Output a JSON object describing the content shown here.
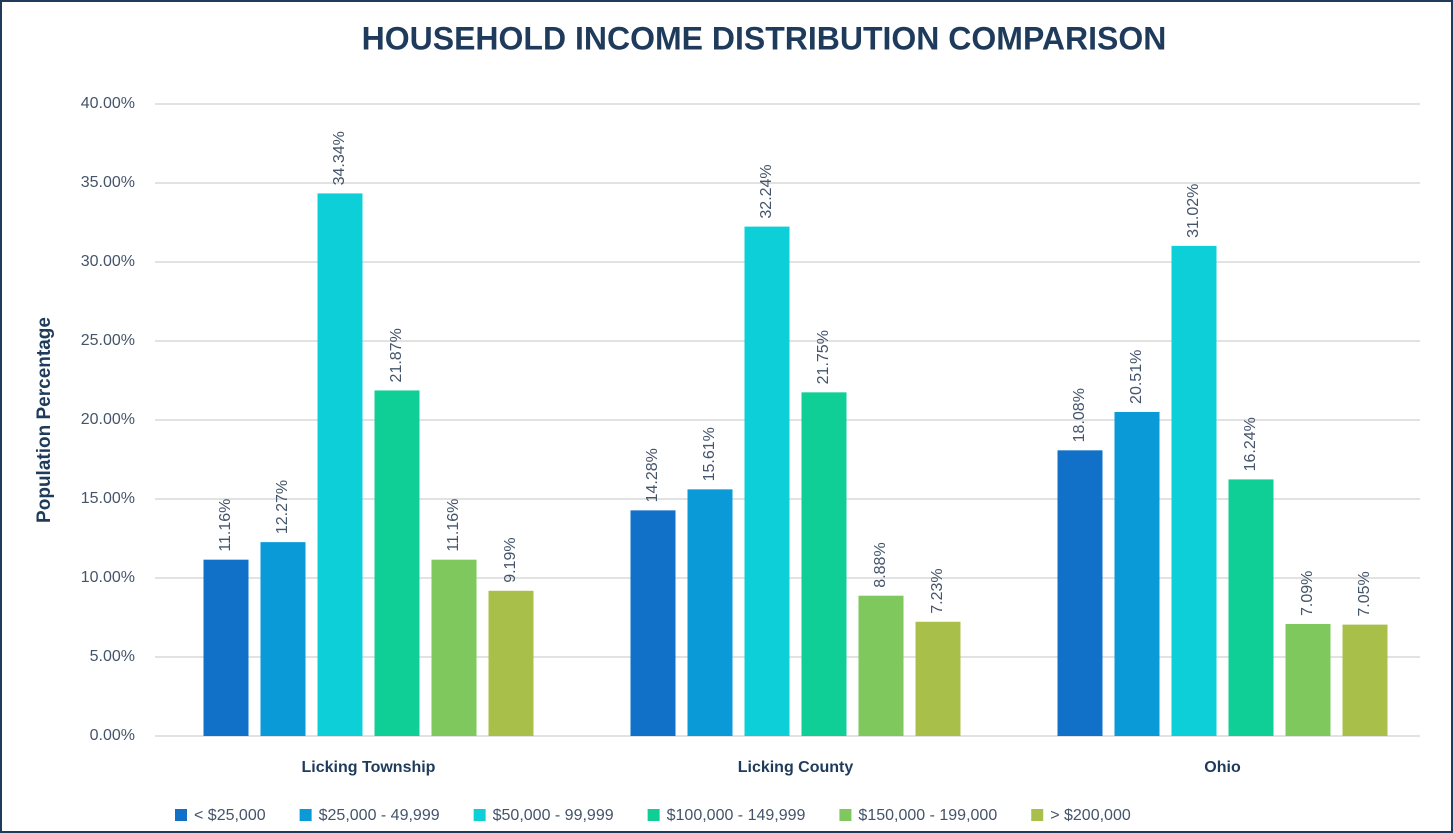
{
  "chart_data": {
    "type": "bar",
    "title": "HOUSEHOLD INCOME DISTRIBUTION COMPARISON",
    "y_label": "Population Percentage",
    "categories": [
      "Licking Township",
      "Licking County",
      "Ohio"
    ],
    "series": [
      {
        "name": "< $25,000",
        "color": "#1170c8",
        "values": [
          11.16,
          14.28,
          18.08
        ],
        "value_labels": [
          "11.16%",
          "14.28%",
          "18.08%"
        ]
      },
      {
        "name": "$25,000 - 49,999",
        "color": "#0a9ad8",
        "values": [
          12.27,
          15.61,
          20.51
        ],
        "value_labels": [
          "12.27%",
          "15.61%",
          "20.51%"
        ]
      },
      {
        "name": "$50,000 - 99,999",
        "color": "#0ccfd8",
        "values": [
          34.34,
          32.24,
          31.02
        ],
        "value_labels": [
          "34.34%",
          "32.24%",
          "31.02%"
        ]
      },
      {
        "name": "$100,000 - 149,999",
        "color": "#10cf96",
        "values": [
          21.87,
          21.75,
          16.24
        ],
        "value_labels": [
          "21.87%",
          "21.75%",
          "16.24%"
        ]
      },
      {
        "name": "$150,000 - 199,000",
        "color": "#7ec85e",
        "values": [
          11.16,
          8.88,
          7.09
        ],
        "value_labels": [
          "11.16%",
          "8.88%",
          "7.09%"
        ]
      },
      {
        "name": "> $200,000",
        "color": "#a8c04a",
        "values": [
          9.19,
          7.23,
          7.05
        ],
        "value_labels": [
          "9.19%",
          "7.23%",
          "7.05%"
        ]
      }
    ],
    "ylim": [
      0,
      40
    ],
    "yticks": [
      {
        "value": 0,
        "label": "0.00%"
      },
      {
        "value": 5,
        "label": "5.00%"
      },
      {
        "value": 10,
        "label": "10.00%"
      },
      {
        "value": 15,
        "label": "15.00%"
      },
      {
        "value": 20,
        "label": "20.00%"
      },
      {
        "value": 25,
        "label": "25.00%"
      },
      {
        "value": 30,
        "label": "30.00%"
      },
      {
        "value": 35,
        "label": "35.00%"
      },
      {
        "value": 40,
        "label": "40.00%"
      }
    ],
    "grid": true,
    "legend": "bottom"
  }
}
